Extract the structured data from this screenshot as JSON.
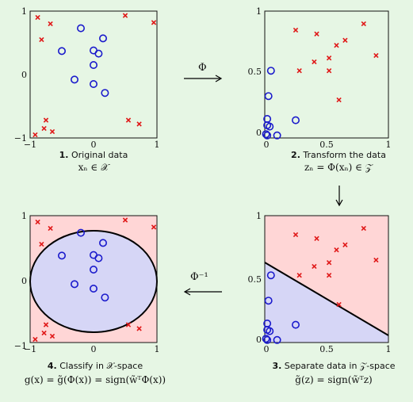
{
  "panels": [
    {
      "id": "p1",
      "caption_number": "1.",
      "caption_text": "Original data",
      "formula": "xₙ ∈ 𝒳",
      "xticks": [
        "−1",
        "0",
        "1"
      ],
      "yticks": [
        "1",
        "0",
        "−1"
      ],
      "space": "X"
    },
    {
      "id": "p2",
      "caption_number": "2.",
      "caption_text": "Transform the data",
      "formula": "zₙ = Φ(xₙ) ∈ 𝒵",
      "xticks": [
        "0",
        "0.5",
        "1"
      ],
      "yticks": [
        "1",
        "0.5",
        "0"
      ],
      "space": "Z"
    },
    {
      "id": "p3",
      "caption_number": "3.",
      "caption_text": "Separate data in 𝒵-space",
      "formula": "g̃(z) = sign(w̃ᵀz)",
      "xticks": [
        "0",
        "0.5",
        "1"
      ],
      "yticks": [
        "1",
        "0.5",
        "0"
      ],
      "space": "Z"
    },
    {
      "id": "p4",
      "caption_number": "4.",
      "caption_text": "Classify in 𝒳-space",
      "formula": "g(x) = g̃(Φ(x)) = sign(w̃ᵀΦ(x))",
      "xticks": [
        "−1",
        "0",
        "1"
      ],
      "yticks": [
        "1",
        "0",
        "−1"
      ],
      "space": "X"
    }
  ],
  "arrows": {
    "forward": "Φ",
    "inverse": "Φ⁻¹"
  },
  "colors": {
    "background": "#e6f6e4",
    "circle_class": "#1a1acc",
    "cross_class": "#e01818",
    "region_positive": "#ffd6d6",
    "region_negative": "#d6d6f6"
  },
  "chart_data": [
    {
      "type": "scatter",
      "xlim": [
        -1,
        1
      ],
      "ylim": [
        -1,
        1
      ],
      "series": [
        {
          "marker": "circle",
          "x": [
            -0.2,
            0.15,
            -0.5,
            0.0,
            0.08,
            0.0,
            -0.3,
            0.0,
            0.18
          ],
          "y": [
            0.73,
            0.57,
            0.37,
            0.38,
            0.33,
            0.15,
            -0.08,
            -0.15,
            -0.29
          ]
        },
        {
          "marker": "cross",
          "x": [
            -0.88,
            -0.68,
            -0.82,
            0.5,
            0.95,
            -0.75,
            -0.78,
            -0.65,
            -0.92,
            0.55,
            0.72
          ],
          "y": [
            0.9,
            0.8,
            0.55,
            0.93,
            0.82,
            -0.72,
            -0.85,
            -0.9,
            -0.95,
            -0.72,
            -0.78
          ]
        }
      ]
    },
    {
      "type": "scatter",
      "xlim": [
        0,
        1
      ],
      "ylim": [
        0,
        1
      ],
      "series": [
        {
          "marker": "circle",
          "x": [
            0.05,
            0.03,
            0.02,
            0.02,
            0.04,
            0.25,
            0.1,
            0.01,
            0.02
          ],
          "y": [
            0.53,
            0.33,
            0.15,
            0.1,
            0.09,
            0.14,
            0.02,
            0.03,
            0.02
          ]
        },
        {
          "marker": "cross",
          "x": [
            0.25,
            0.42,
            0.8,
            0.65,
            0.58,
            0.9,
            0.4,
            0.52,
            0.28,
            0.52,
            0.6
          ],
          "y": [
            0.85,
            0.82,
            0.9,
            0.77,
            0.73,
            0.65,
            0.6,
            0.63,
            0.53,
            0.53,
            0.3
          ]
        }
      ]
    },
    {
      "type": "scatter",
      "xlim": [
        0,
        1
      ],
      "ylim": [
        0,
        1
      ],
      "series": [
        {
          "marker": "circle",
          "x": [
            0.05,
            0.03,
            0.02,
            0.02,
            0.04,
            0.25,
            0.1,
            0.01,
            0.02
          ],
          "y": [
            0.53,
            0.33,
            0.15,
            0.1,
            0.09,
            0.14,
            0.02,
            0.03,
            0.02
          ]
        },
        {
          "marker": "cross",
          "x": [
            0.25,
            0.42,
            0.8,
            0.65,
            0.58,
            0.9,
            0.4,
            0.52,
            0.28,
            0.52,
            0.6
          ],
          "y": [
            0.85,
            0.82,
            0.9,
            0.77,
            0.73,
            0.65,
            0.6,
            0.63,
            0.53,
            0.53,
            0.3
          ]
        }
      ],
      "boundary": {
        "x": [
          0,
          1
        ],
        "y": [
          0.63,
          0.07
        ]
      }
    },
    {
      "type": "scatter",
      "xlim": [
        -1,
        1
      ],
      "ylim": [
        -1,
        1
      ],
      "series": [
        {
          "marker": "circle",
          "x": [
            -0.2,
            0.15,
            -0.5,
            0.0,
            0.08,
            0.0,
            -0.3,
            0.0,
            0.18
          ],
          "y": [
            0.73,
            0.57,
            0.37,
            0.38,
            0.33,
            0.15,
            -0.08,
            -0.15,
            -0.29
          ]
        },
        {
          "marker": "cross",
          "x": [
            -0.88,
            -0.68,
            -0.82,
            0.5,
            0.95,
            -0.75,
            -0.78,
            -0.65,
            -0.92,
            0.55,
            0.72
          ],
          "y": [
            0.9,
            0.8,
            0.55,
            0.93,
            0.82,
            -0.72,
            -0.85,
            -0.9,
            -0.95,
            -0.72,
            -0.78
          ]
        }
      ],
      "boundary": {
        "shape": "ellipse",
        "center": [
          0,
          -0.02
        ],
        "radius": [
          0.82,
          0.8
        ]
      }
    }
  ]
}
